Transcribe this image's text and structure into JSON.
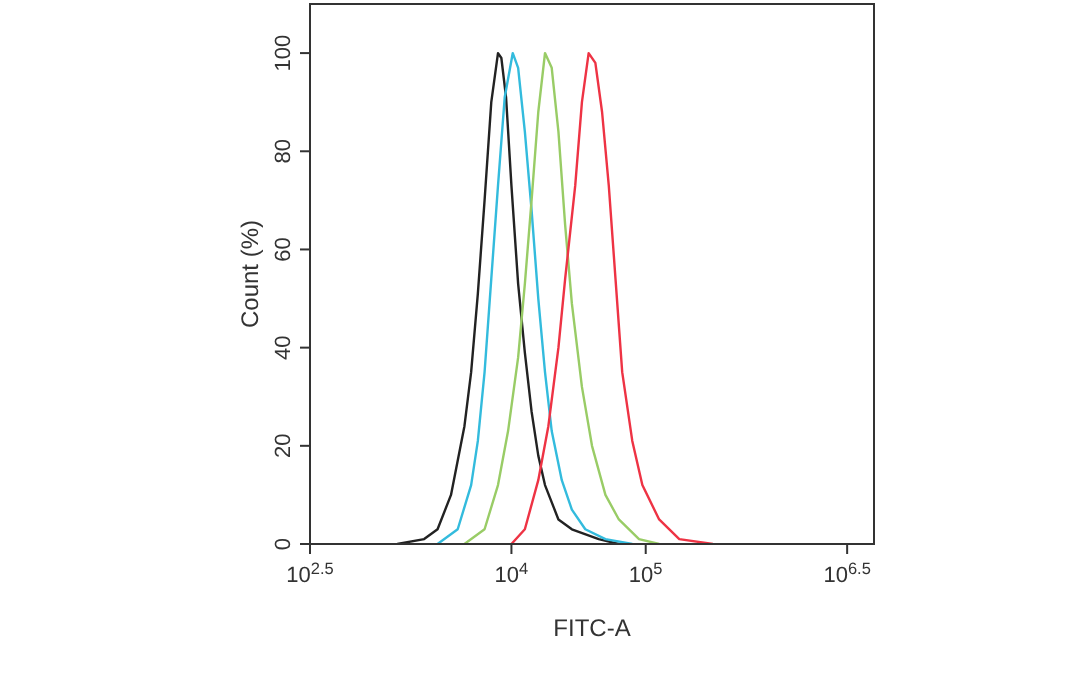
{
  "chart_data": {
    "type": "line",
    "xlabel": "FITC-A",
    "ylabel": "Count (%)",
    "log": "x",
    "grid": false,
    "marker": "none",
    "line_style": "solid",
    "xlim": [
      316.23,
      5011872
    ],
    "ylim": [
      0,
      110
    ],
    "xticks": [
      {
        "value": 316.23,
        "label": "10$^{2.5}$"
      },
      {
        "value": 10000,
        "label": "10$^{4}$"
      },
      {
        "value": 100000,
        "label": "10$^{5}$"
      },
      {
        "value": 3162277.66,
        "label": "10$^{6.5}$"
      }
    ],
    "yticks": [
      0,
      20,
      40,
      60,
      80,
      100
    ],
    "series": [
      {
        "color": "#222222",
        "x": [
          1413,
          2239,
          2818,
          3548,
          4467,
          5012,
          5623,
          6310,
          7079,
          7943,
          8414,
          9120,
          10000,
          11220,
          12589,
          14125,
          15849,
          17783,
          22387,
          28184,
          44668,
          63096
        ],
        "values": [
          0,
          1,
          3,
          10,
          24,
          35,
          51,
          70,
          90,
          100,
          99,
          91,
          73,
          53,
          39,
          27,
          18,
          12,
          5,
          3,
          1,
          0
        ]
      },
      {
        "color": "#33bbdd",
        "x": [
          2818,
          3981,
          5012,
          5623,
          6310,
          7079,
          7943,
          8913,
          10233,
          11220,
          12589,
          14125,
          15849,
          17783,
          19953,
          23714,
          28184,
          35481,
          50119,
          79433
        ],
        "values": [
          0,
          3,
          12,
          21,
          35,
          54,
          73,
          91,
          100,
          97,
          84,
          68,
          50,
          35,
          23,
          13,
          7,
          3,
          1,
          0
        ]
      },
      {
        "color": "#99cc66",
        "x": [
          4467,
          6310,
          7943,
          9441,
          11220,
          12589,
          14125,
          15849,
          17783,
          19953,
          22387,
          25119,
          28184,
          33497,
          39811,
          50119,
          63096,
          89125,
          125893
        ],
        "values": [
          0,
          3,
          12,
          23,
          38,
          53,
          70,
          88,
          100,
          97,
          84,
          65,
          49,
          32,
          20,
          10,
          5,
          1,
          0
        ]
      },
      {
        "color": "#ee3344",
        "x": [
          10000,
          12589,
          15849,
          18836,
          22387,
          25119,
          29854,
          33497,
          37584,
          42170,
          47315,
          53088,
          59566,
          66834,
          79433,
          94406,
          125893,
          177828,
          316228
        ],
        "values": [
          0,
          3,
          13,
          24,
          40,
          54,
          73,
          90,
          100,
          98,
          88,
          73,
          54,
          35,
          21,
          12,
          5,
          1,
          0
        ]
      }
    ]
  }
}
